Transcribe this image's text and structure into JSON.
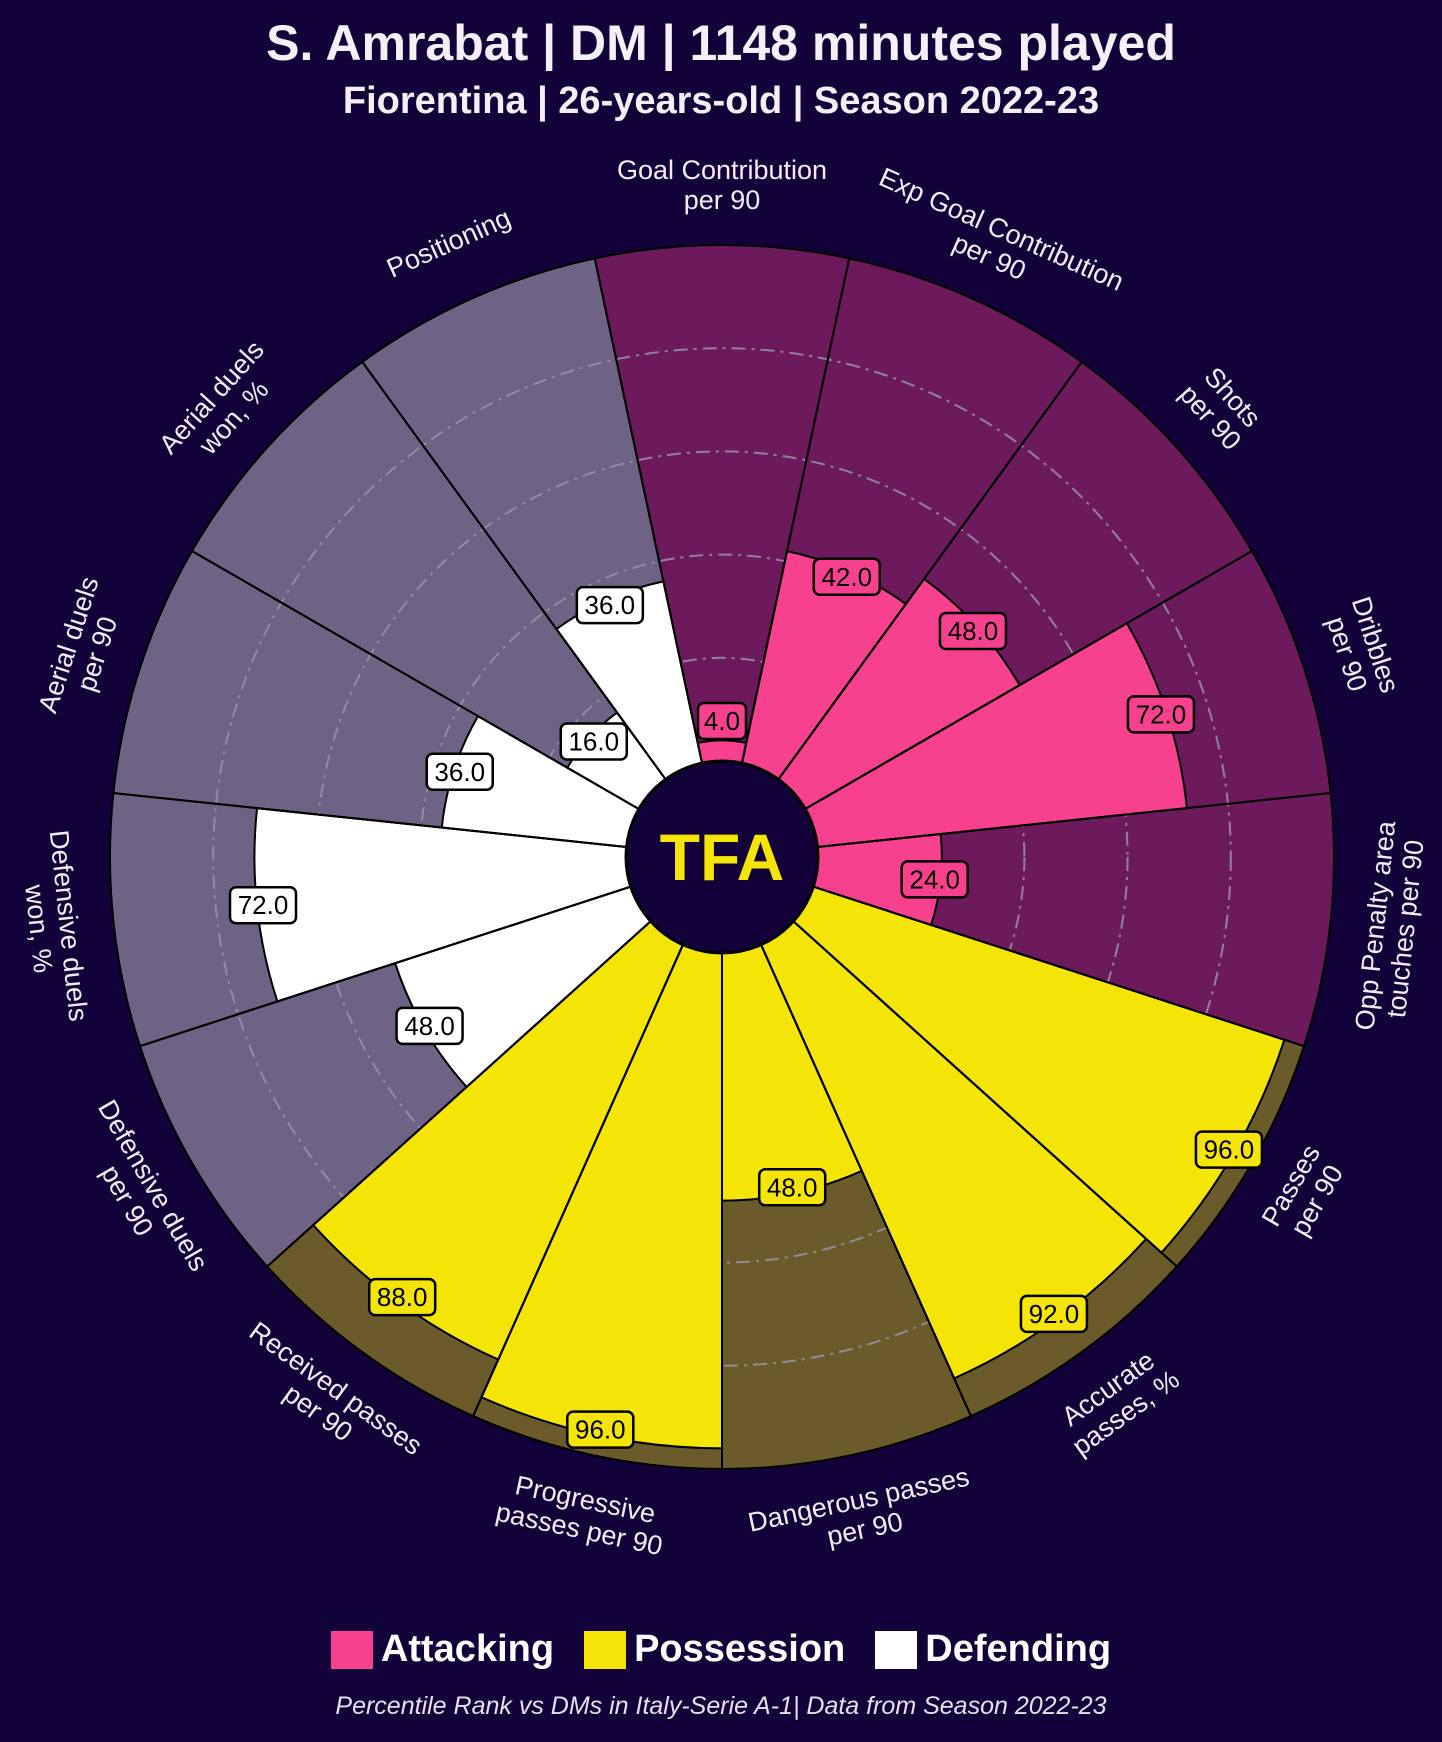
{
  "header": {
    "title": "S. Amrabat | DM | 1148 minutes played",
    "subtitle": "Fiorentina | 26-years-old | Season 2022-23"
  },
  "logo": {
    "text": "TFA",
    "color": "#f5e506"
  },
  "chart_data": {
    "type": "pizza",
    "range": [
      0,
      100
    ],
    "grid": "dash-dot rings at 20, 40, 60, 80",
    "categories": [
      {
        "name": "Attacking",
        "slice_color": "#f7418f",
        "background_color": "#6d1a5c",
        "label_box_color": "#f7418f",
        "label_text_color": "#000000"
      },
      {
        "name": "Possession",
        "slice_color": "#f5e506",
        "background_color": "#6b5b2a",
        "label_box_color": "#f5e506",
        "label_text_color": "#000000"
      },
      {
        "name": "Defending",
        "slice_color": "#ffffff",
        "background_color": "#6f6385",
        "label_box_color": "#ffffff",
        "label_text_color": "#000000"
      }
    ],
    "metrics": [
      {
        "label": [
          "Goal Contribution",
          "per 90"
        ],
        "value": 4,
        "value_label": "4.0",
        "category": "Attacking"
      },
      {
        "label": [
          "Exp Goal Contribution",
          "per 90"
        ],
        "value": 42,
        "value_label": "42.0",
        "category": "Attacking"
      },
      {
        "label": [
          "Shots",
          "per 90"
        ],
        "value": 48,
        "value_label": "48.0",
        "category": "Attacking"
      },
      {
        "label": [
          "Dribbles",
          "per 90"
        ],
        "value": 72,
        "value_label": "72.0",
        "category": "Attacking"
      },
      {
        "label": [
          "Opp Penalty area",
          "touches per 90"
        ],
        "value": 24,
        "value_label": "24.0",
        "category": "Attacking"
      },
      {
        "label": [
          "Passes",
          "per 90"
        ],
        "value": 96,
        "value_label": "96.0",
        "category": "Possession"
      },
      {
        "label": [
          "Accurate",
          "passes, %"
        ],
        "value": 92,
        "value_label": "92.0",
        "category": "Possession"
      },
      {
        "label": [
          "Dangerous passes",
          "per 90"
        ],
        "value": 48,
        "value_label": "48.0",
        "category": "Possession"
      },
      {
        "label": [
          "Progressive",
          "passes per 90"
        ],
        "value": 96,
        "value_label": "96.0",
        "category": "Possession"
      },
      {
        "label": [
          "Received passes",
          "per 90"
        ],
        "value": 88,
        "value_label": "88.0",
        "category": "Possession"
      },
      {
        "label": [
          "Defensive duels",
          "per 90"
        ],
        "value": 48,
        "value_label": "48.0",
        "category": "Defending"
      },
      {
        "label": [
          "Defensive duels",
          "won, %"
        ],
        "value": 72,
        "value_label": "72.0",
        "category": "Defending"
      },
      {
        "label": [
          "Aerial duels",
          "per 90"
        ],
        "value": 36,
        "value_label": "36.0",
        "category": "Defending"
      },
      {
        "label": [
          "Aerial duels",
          "won, %"
        ],
        "value": 16,
        "value_label": "16.0",
        "category": "Defending"
      },
      {
        "label": [
          "Positioning"
        ],
        "value": 36,
        "value_label": "36.0",
        "category": "Defending"
      }
    ]
  },
  "legend": {
    "items": [
      {
        "label": "Attacking",
        "color": "#f7418f"
      },
      {
        "label": "Possession",
        "color": "#f5e506"
      },
      {
        "label": "Defending",
        "color": "#ffffff"
      }
    ]
  },
  "footnote": "Percentile Rank vs DMs in Italy-Serie A-1| Data from Season 2022-23"
}
